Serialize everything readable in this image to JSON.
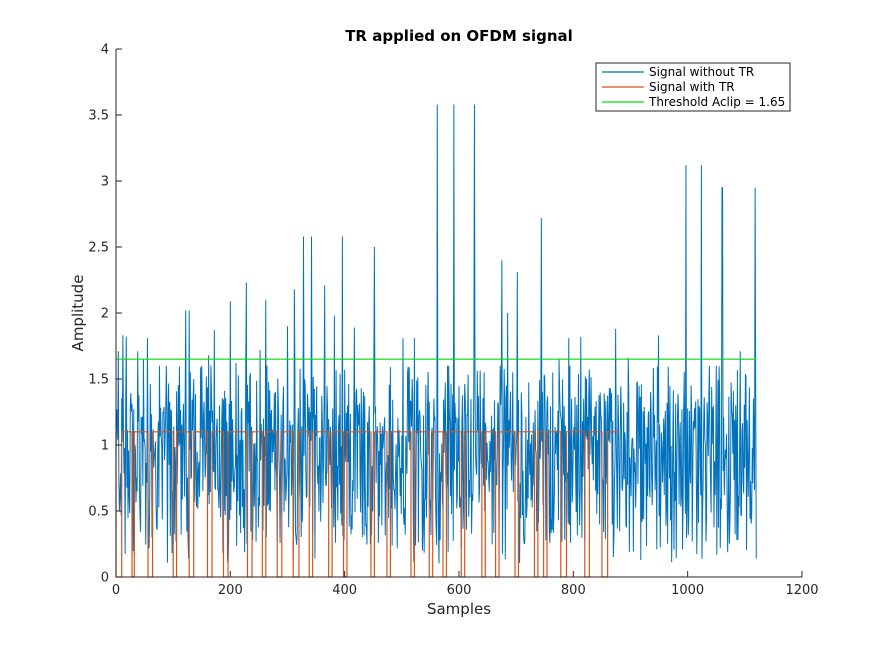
{
  "chart_data": {
    "type": "line",
    "title": "TR applied on OFDM signal",
    "xlabel": "Samples",
    "ylabel": "Amplitude",
    "xlim": [
      0,
      1200
    ],
    "ylim": [
      0,
      4
    ],
    "xticks": [
      0,
      200,
      400,
      600,
      800,
      1000,
      1200
    ],
    "yticks": [
      0,
      0.5,
      1,
      1.5,
      2,
      2.5,
      3,
      3.5,
      4
    ],
    "xtick_labels": [
      "0",
      "200",
      "400",
      "600",
      "800",
      "1000",
      "1200"
    ],
    "ytick_labels": [
      "0",
      "0.5",
      "1",
      "1.5",
      "2",
      "2.5",
      "3",
      "3.5",
      "4"
    ],
    "grid": false,
    "legend_position": "top-right",
    "series": [
      {
        "name": "Signal without TR",
        "color": "#0072BD",
        "note": "dense noisy trace, 1120 samples; peak values read from figure",
        "x_range": [
          0,
          1120
        ],
        "peaks": [
          [
            4,
            1.71
          ],
          [
            12,
            1.83
          ],
          [
            18,
            1.82
          ],
          [
            38,
            1.71
          ],
          [
            48,
            1.65
          ],
          [
            55,
            1.81
          ],
          [
            122,
            2.02
          ],
          [
            128,
            2.02
          ],
          [
            162,
            1.68
          ],
          [
            172,
            1.87
          ],
          [
            200,
            2.09
          ],
          [
            210,
            1.62
          ],
          [
            228,
            2.23
          ],
          [
            252,
            1.72
          ],
          [
            262,
            2.1
          ],
          [
            300,
            1.9
          ],
          [
            312,
            2.18
          ],
          [
            328,
            2.58
          ],
          [
            342,
            2.58
          ],
          [
            365,
            2.21
          ],
          [
            382,
            1.98
          ],
          [
            396,
            2.58
          ],
          [
            417,
            1.89
          ],
          [
            452,
            2.5
          ],
          [
            502,
            1.81
          ],
          [
            522,
            1.81
          ],
          [
            562,
            3.58
          ],
          [
            591,
            3.58
          ],
          [
            627,
            3.58
          ],
          [
            675,
            2.4
          ],
          [
            685,
            2.0
          ],
          [
            702,
            2.31
          ],
          [
            744,
            2.72
          ],
          [
            775,
            1.65
          ],
          [
            792,
            1.81
          ],
          [
            813,
            1.82
          ],
          [
            874,
            1.88
          ],
          [
            896,
            1.66
          ],
          [
            949,
            1.83
          ],
          [
            997,
            3.12
          ],
          [
            1024,
            3.12
          ],
          [
            1061,
            2.95
          ],
          [
            1060,
            2.95
          ],
          [
            1092,
            1.71
          ],
          [
            1118,
            2.95
          ],
          [
            1120,
            0.14
          ]
        ]
      },
      {
        "name": "Signal with TR",
        "color": "#D95319",
        "note": "clipped at 1.1: flat 1.1 with dips to 0",
        "x_range": [
          0,
          880
        ],
        "level": 1.1,
        "dips": [
          [
            0,
            10
          ],
          [
            28,
            32
          ],
          [
            56,
            64
          ],
          [
            100,
            106
          ],
          [
            128,
            136
          ],
          [
            160,
            168
          ],
          [
            188,
            196
          ],
          [
            230,
            238
          ],
          [
            256,
            262
          ],
          [
            282,
            290
          ],
          [
            310,
            320
          ],
          [
            338,
            344
          ],
          [
            372,
            378
          ],
          [
            398,
            404
          ],
          [
            446,
            452
          ],
          [
            474,
            480
          ],
          [
            516,
            522
          ],
          [
            548,
            554
          ],
          [
            572,
            578
          ],
          [
            604,
            610
          ],
          [
            640,
            646
          ],
          [
            664,
            670
          ],
          [
            698,
            704
          ],
          [
            732,
            738
          ],
          [
            748,
            754
          ],
          [
            778,
            788
          ],
          [
            820,
            828
          ],
          [
            850,
            860
          ]
        ]
      },
      {
        "name": "Threshold Aclip = 1.65",
        "color": "#00E000",
        "x": [
          0,
          1120
        ],
        "y": [
          1.65,
          1.65
        ]
      }
    ]
  }
}
